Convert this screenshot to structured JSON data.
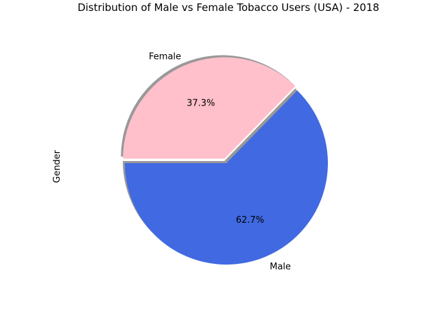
{
  "chart_data": {
    "type": "pie",
    "title": "Distribution of Male vs Female Tobacco Users (USA) - 2018",
    "ylabel": "Gender",
    "slices": [
      {
        "label": "Male",
        "value": 62.7,
        "pct_label": "62.7%",
        "color": "#4169e1",
        "exploded": false
      },
      {
        "label": "Female",
        "value": 37.3,
        "pct_label": "37.3%",
        "color": "#ffc0cb",
        "exploded": true
      }
    ],
    "start_angle_deg": 180,
    "shadow": true,
    "legend": "none"
  }
}
